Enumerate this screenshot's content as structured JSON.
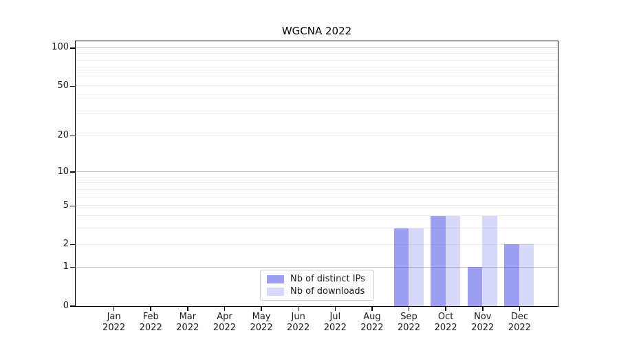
{
  "title": "WGCNA 2022",
  "chart_data": {
    "type": "bar",
    "title": "WGCNA 2022",
    "year": "2022",
    "months": [
      "Jan",
      "Feb",
      "Mar",
      "Apr",
      "May",
      "Jun",
      "Jul",
      "Aug",
      "Sep",
      "Oct",
      "Nov",
      "Dec"
    ],
    "categories": [
      "Jan 2022",
      "Feb 2022",
      "Mar 2022",
      "Apr 2022",
      "May 2022",
      "Jun 2022",
      "Jul 2022",
      "Aug 2022",
      "Sep 2022",
      "Oct 2022",
      "Nov 2022",
      "Dec 2022"
    ],
    "series": [
      {
        "name": "Nb of distinct IPs",
        "color": "rgba(70,70,230,0.52)",
        "solid_color": "#a5a5f0",
        "values": [
          0,
          0,
          0,
          0,
          0,
          0,
          0,
          0,
          3,
          4,
          1,
          2
        ]
      },
      {
        "name": "Nb of downloads",
        "color": "rgba(70,70,230,0.21)",
        "solid_color": "#d8d8f7",
        "values": [
          0,
          0,
          0,
          0,
          0,
          0,
          0,
          0,
          3,
          4,
          4,
          2
        ]
      }
    ],
    "yscale": "log1p",
    "ylim": [
      0,
      113
    ],
    "yticks": [
      0,
      1,
      2,
      5,
      10,
      20,
      50,
      100
    ],
    "major_gridlines": [
      1,
      10,
      100
    ],
    "minor_gridlines": [
      2,
      3,
      4,
      5,
      6,
      7,
      8,
      9,
      20,
      30,
      40,
      50,
      60,
      70,
      80,
      90
    ],
    "grid": true,
    "legend_position": "lower center"
  },
  "colors": {
    "grid_major": "#c7c7c7",
    "grid_minor": "#ececec",
    "axis": "#000000",
    "legend_border": "#cccccc"
  }
}
